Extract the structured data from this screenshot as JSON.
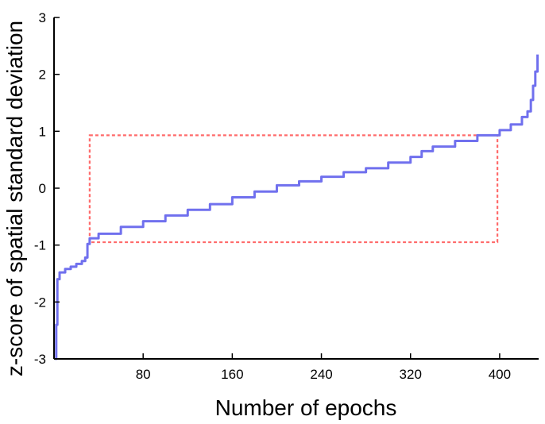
{
  "chart_data": {
    "type": "line",
    "title": "",
    "xlabel": "Number of epochs",
    "ylabel": "z-score of spatial standard deviation",
    "xlim": [
      0,
      435
    ],
    "ylim": [
      -3,
      3
    ],
    "x_ticks": [
      80,
      160,
      240,
      320,
      400
    ],
    "y_ticks": [
      -3,
      -2,
      -1,
      0,
      1,
      2,
      3
    ],
    "grid": false,
    "legend": "none",
    "colors": {
      "line": "#7070ee",
      "box": "#ff6b6b",
      "axis": "#000000"
    },
    "series": [
      {
        "x": [
          1,
          2,
          3,
          5,
          10,
          15,
          20,
          25,
          28,
          30,
          32,
          40,
          60,
          80,
          100,
          120,
          140,
          160,
          180,
          200,
          220,
          240,
          260,
          280,
          300,
          320,
          330,
          340,
          360,
          380,
          400,
          410,
          420,
          425,
          428,
          430,
          432,
          434
        ],
        "y": [
          -3.0,
          -2.4,
          -1.6,
          -1.48,
          -1.42,
          -1.38,
          -1.33,
          -1.28,
          -1.22,
          -0.98,
          -0.88,
          -0.8,
          -0.68,
          -0.58,
          -0.48,
          -0.38,
          -0.28,
          -0.16,
          -0.06,
          0.05,
          0.12,
          0.2,
          0.28,
          0.35,
          0.45,
          0.55,
          0.65,
          0.73,
          0.83,
          0.93,
          1.02,
          1.12,
          1.25,
          1.35,
          1.55,
          1.8,
          2.05,
          2.35
        ]
      }
    ],
    "annotations": [
      {
        "type": "dashed-rectangle",
        "x": [
          32,
          398
        ],
        "y": [
          -0.95,
          0.93
        ]
      }
    ]
  }
}
